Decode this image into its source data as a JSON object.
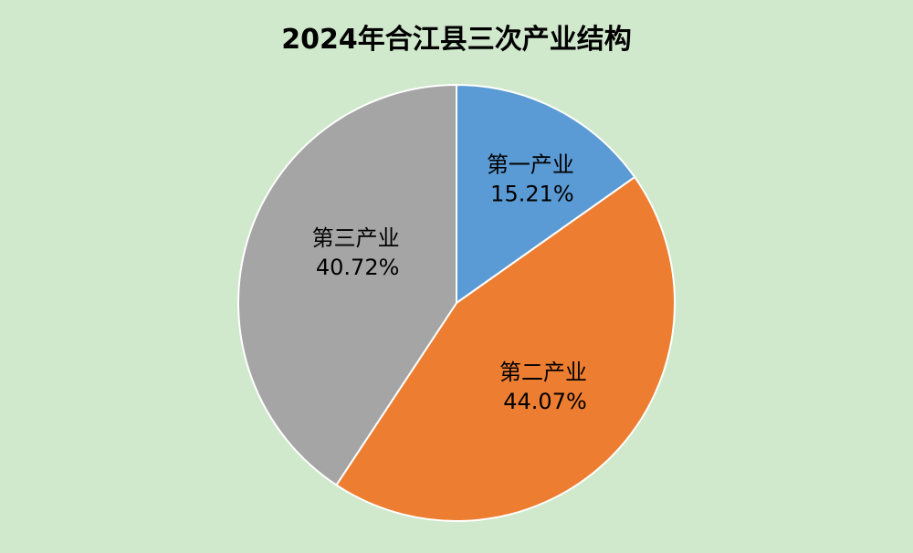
{
  "chart_data": {
    "type": "pie",
    "title": "2024年合江县三次产业结构",
    "start_angle": "top",
    "direction": "clockwise",
    "slices": [
      {
        "label": "第一产业",
        "value": 15.21,
        "value_label": "15.21%",
        "color": "#5B9BD5"
      },
      {
        "label": "第二产业",
        "value": 44.07,
        "value_label": "44.07%",
        "color": "#ED7D31"
      },
      {
        "label": "第三产业",
        "value": 40.72,
        "value_label": "40.72%",
        "color": "#A5A5A5"
      }
    ],
    "legend": "none",
    "background": "#D0E8CC"
  }
}
